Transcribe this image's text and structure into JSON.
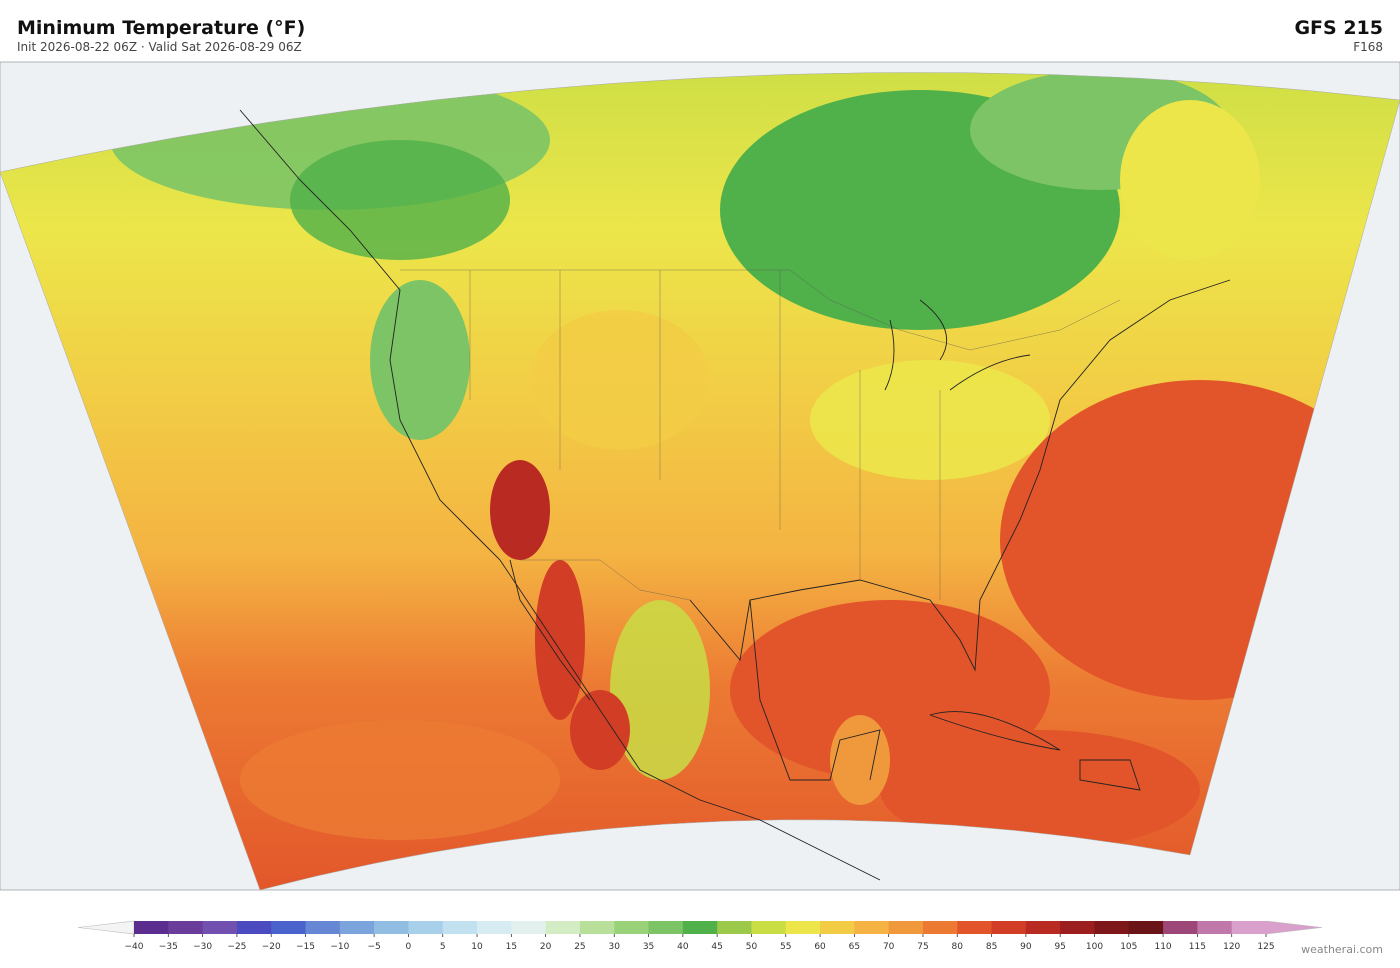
{
  "header": {
    "title": "Minimum Temperature  (°F)",
    "subtitle": "Init 2026-08-22 06Z  ·  Valid Sat 2026-08-29 06Z",
    "model": "GFS  215",
    "forecast_hour": "F168"
  },
  "colorbar": {
    "ticks": [
      {
        "value": -40,
        "label": "−40"
      },
      {
        "value": -35,
        "label": "−35"
      },
      {
        "value": -30,
        "label": "−30"
      },
      {
        "value": -25,
        "label": "−25"
      },
      {
        "value": -20,
        "label": "−20"
      },
      {
        "value": -15,
        "label": "−15"
      },
      {
        "value": -10,
        "label": "−10"
      },
      {
        "value": -5,
        "label": "−5"
      },
      0,
      5,
      10,
      15,
      20,
      25,
      30,
      35,
      40,
      45,
      50,
      55,
      60,
      65,
      70,
      75,
      80,
      85,
      90,
      95,
      100,
      105,
      110,
      115,
      120,
      125
    ],
    "colors": [
      "#5b2d8e",
      "#6a3d9a",
      "#7150b0",
      "#4b4bbf",
      "#4a62cc",
      "#6688d4",
      "#7ba3dc",
      "#92bde3",
      "#a8d0ea",
      "#c1e0f0",
      "#d6ecf2",
      "#e3f1ee",
      "#d4ecc4",
      "#b9e09a",
      "#9ad27a",
      "#7cc465",
      "#50b04a",
      "#9cc94a",
      "#c9dd45",
      "#ece64a",
      "#f2cc45",
      "#f4b342",
      "#f0993c",
      "#ec7a33",
      "#e2552a",
      "#d23d25",
      "#b92a22",
      "#9c1e1f",
      "#7d1719",
      "#6a1418",
      "#9c4778",
      "#c078aa",
      "#d8a0cb"
    ],
    "under_color": "#f4f4f4",
    "over_color": "#d8a0cb"
  },
  "footer": {
    "credit": "weatherai.com"
  }
}
